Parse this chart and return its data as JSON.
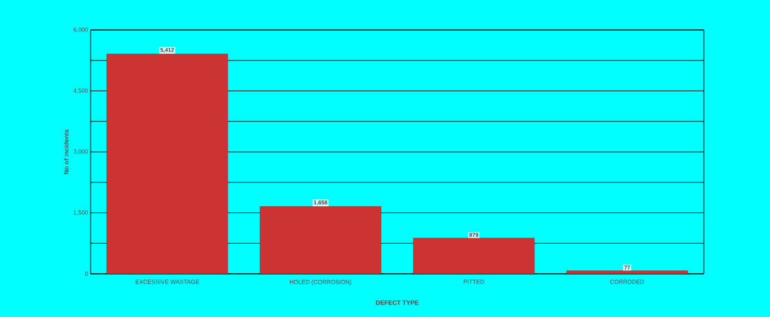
{
  "chart_data": {
    "type": "bar",
    "xlabel": "DEFECT TYPE",
    "ylabel": "No of incidents",
    "categories": [
      "EXCESSIVE WASTAGE",
      "HOLED (CORROSION)",
      "PITTED",
      "CORRODED"
    ],
    "values": [
      5412,
      1658,
      879,
      77
    ],
    "color": "#cc3333",
    "ylim": [
      0,
      6000
    ],
    "yticks": [
      {
        "value": 0,
        "label": "0"
      },
      {
        "value": 750,
        "label": null
      },
      {
        "value": 1500,
        "label": "1,500"
      },
      {
        "value": 2250,
        "label": null
      },
      {
        "value": 3000,
        "label": "3,000"
      },
      {
        "value": 3750,
        "label": null
      },
      {
        "value": 4500,
        "label": "4,500"
      },
      {
        "value": 5250,
        "label": null
      },
      {
        "value": 6000,
        "label": "6,000"
      }
    ],
    "grid": "y",
    "value_labels": [
      "5,412",
      "1,658",
      "879",
      "77"
    ]
  }
}
